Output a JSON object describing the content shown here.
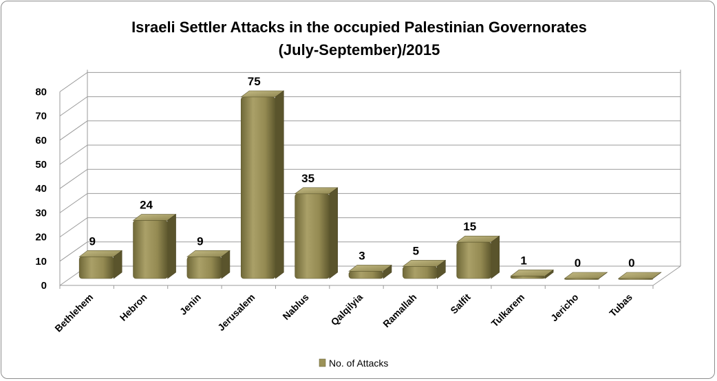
{
  "chart_data": {
    "type": "bar",
    "title_line1": "Israeli Settler Attacks in the occupied Palestinian Governorates",
    "title_line2": "(July-September)/2015",
    "categories": [
      "Bethlehem",
      "Hebron",
      "Jenin",
      "Jerusalem",
      "Nablus",
      "Qalqilyia",
      "Ramallah",
      "Salfit",
      "Tulkarem",
      "Jericho",
      "Tubas"
    ],
    "series": [
      {
        "name": "No. of Attacks",
        "values": [
          9,
          24,
          9,
          75,
          35,
          3,
          5,
          15,
          1,
          0,
          0
        ]
      }
    ],
    "ylim": [
      0,
      80
    ],
    "yticks": [
      "0",
      "10",
      "20",
      "30",
      "40",
      "50",
      "60",
      "70",
      "80"
    ],
    "grid": true,
    "legend": "bottom",
    "bar_color": "#9c9258"
  }
}
